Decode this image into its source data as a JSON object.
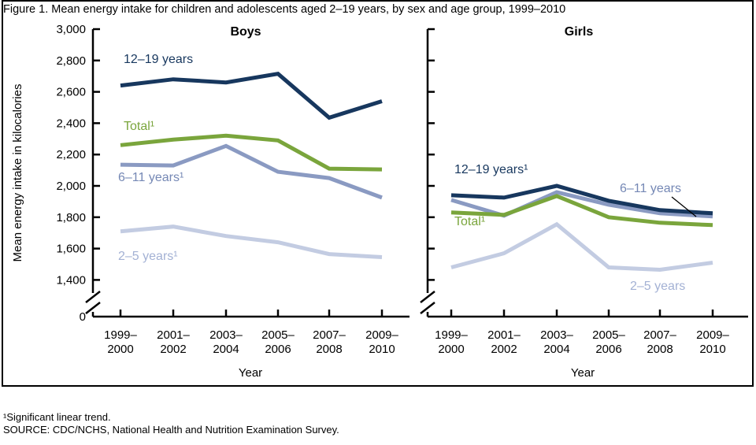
{
  "figure_title": "Figure 1. Mean energy intake for children and adolescents aged 2–19 years, by sex and age group, 1999–2010",
  "footnotes": {
    "trend": "¹Significant linear trend.",
    "source": "SOURCE: CDC/NCHS, National Health and Nutrition Examination Survey."
  },
  "colors": {
    "series_12_19": "#17375E",
    "series_total": "#7AA53C",
    "series_6_11": "#8A9AC2",
    "series_2_5": "#C3CCE2",
    "axis": "#000000"
  },
  "chart_data": {
    "type": "line",
    "title": "Mean energy intake for children and adolescents aged 2–19 years, by sex and age group, 1999–2010",
    "ylabel": "Mean energy intake in kilocalories",
    "xlabel": "Year",
    "ylim": [
      1400,
      3000
    ],
    "y_axis_break": true,
    "baseline_label": "0",
    "y_ticks": [
      3000,
      2800,
      2600,
      2400,
      2200,
      2000,
      1800,
      1600,
      1400
    ],
    "grid": false,
    "legend_position": "inline-labels",
    "categories": [
      [
        "1999–",
        "2000"
      ],
      [
        "2001–",
        "2002"
      ],
      [
        "2003–",
        "2004"
      ],
      [
        "2005–",
        "2006"
      ],
      [
        "2007–",
        "2008"
      ],
      [
        "2009–",
        "2010"
      ]
    ],
    "panels": [
      {
        "title": "Boys",
        "series": [
          {
            "name": "12–19 years",
            "label": "12–19 years",
            "color": "#17375E",
            "label_color": "#17375E",
            "values": [
              2640,
              2680,
              2660,
              2715,
              2435,
              2540
            ]
          },
          {
            "name": "Total",
            "label": "Total¹",
            "color": "#7AA53C",
            "label_color": "#7AA53C",
            "values": [
              2260,
              2295,
              2320,
              2290,
              2110,
              2105
            ]
          },
          {
            "name": "6–11 years",
            "label": "6–11 years¹",
            "color": "#8A9AC2",
            "label_color": "#7588B5",
            "values": [
              2135,
              2130,
              2255,
              2090,
              2050,
              1925
            ]
          },
          {
            "name": "2–5 years",
            "label": "2–5 years¹",
            "color": "#C3CCE2",
            "label_color": "#A3B1D4",
            "values": [
              1710,
              1740,
              1680,
              1640,
              1565,
              1545
            ]
          }
        ]
      },
      {
        "title": "Girls",
        "series": [
          {
            "name": "12–19 years",
            "label": "12–19 years¹",
            "color": "#17375E",
            "label_color": "#17375E",
            "values": [
              1940,
              1925,
              2000,
              1905,
              1845,
              1825
            ]
          },
          {
            "name": "Total",
            "label": "Total¹",
            "color": "#7AA53C",
            "label_color": "#7AA53C",
            "values": [
              1830,
              1815,
              1935,
              1800,
              1765,
              1750
            ]
          },
          {
            "name": "6–11 years",
            "label": "6–11 years",
            "color": "#8A9AC2",
            "label_color": "#7588B5",
            "values": [
              1910,
              1810,
              1960,
              1880,
              1825,
              1805
            ]
          },
          {
            "name": "2–5 years",
            "label": "2–5 years",
            "color": "#C3CCE2",
            "label_color": "#A3B1D4",
            "values": [
              1480,
              1570,
              1755,
              1480,
              1465,
              1510
            ]
          }
        ]
      }
    ]
  }
}
